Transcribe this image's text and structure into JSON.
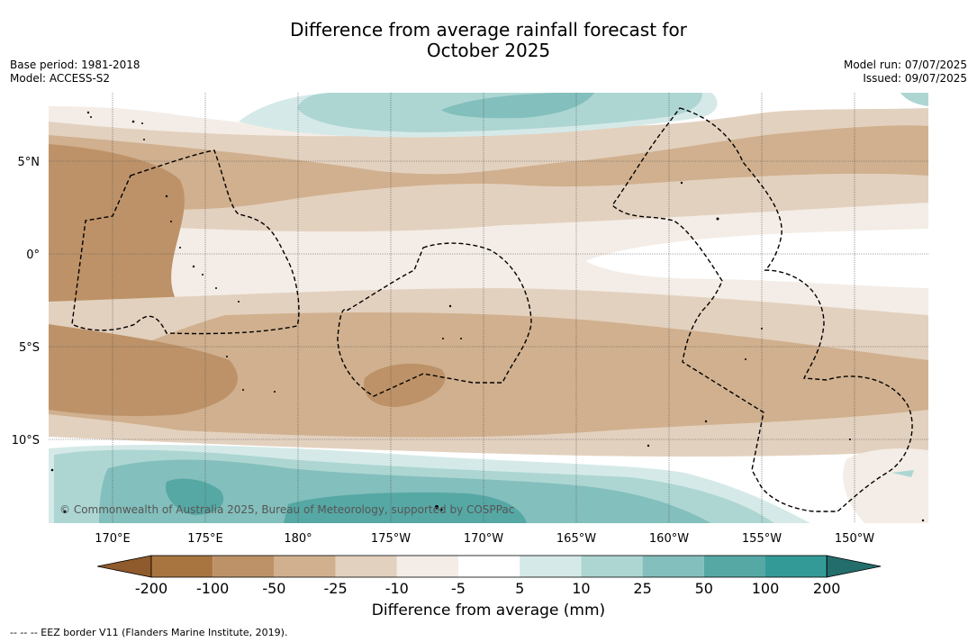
{
  "title_line1": "Difference from average rainfall forecast for",
  "title_line2": "October 2025",
  "base_period": "Base period: 1981-2018",
  "model": "Model: ACCESS-S2",
  "model_run": "Model run: 07/07/2025",
  "issued": "Issued: 09/07/2025",
  "copyright": "© Commonwealth of Australia 2025, Bureau of Meteorology, supported by COSPPac",
  "lat_labels": [
    "5°N",
    "0°",
    "5°S",
    "10°S"
  ],
  "lon_labels": [
    "170°E",
    "175°E",
    "180°",
    "175°W",
    "170°W",
    "165°W",
    "160°W",
    "155°W",
    "150°W"
  ],
  "colorbar": {
    "title": "Difference from average (mm)",
    "ticks": [
      "-200",
      "-100",
      "-50",
      "-25",
      "-10",
      "-5",
      "5",
      "10",
      "25",
      "50",
      "100",
      "200"
    ],
    "colors": [
      "#8f5a2c",
      "#a87540",
      "#bd9268",
      "#d0b08e",
      "#e3d1bf",
      "#f4ede7",
      "#ffffff",
      "#d5eae8",
      "#add6d3",
      "#83bfbc",
      "#56a8a5",
      "#349a97",
      "#236e6c"
    ]
  },
  "footnote": "--  --  -- EEZ border V11 (Flanders Marine Institute, 2019)."
}
